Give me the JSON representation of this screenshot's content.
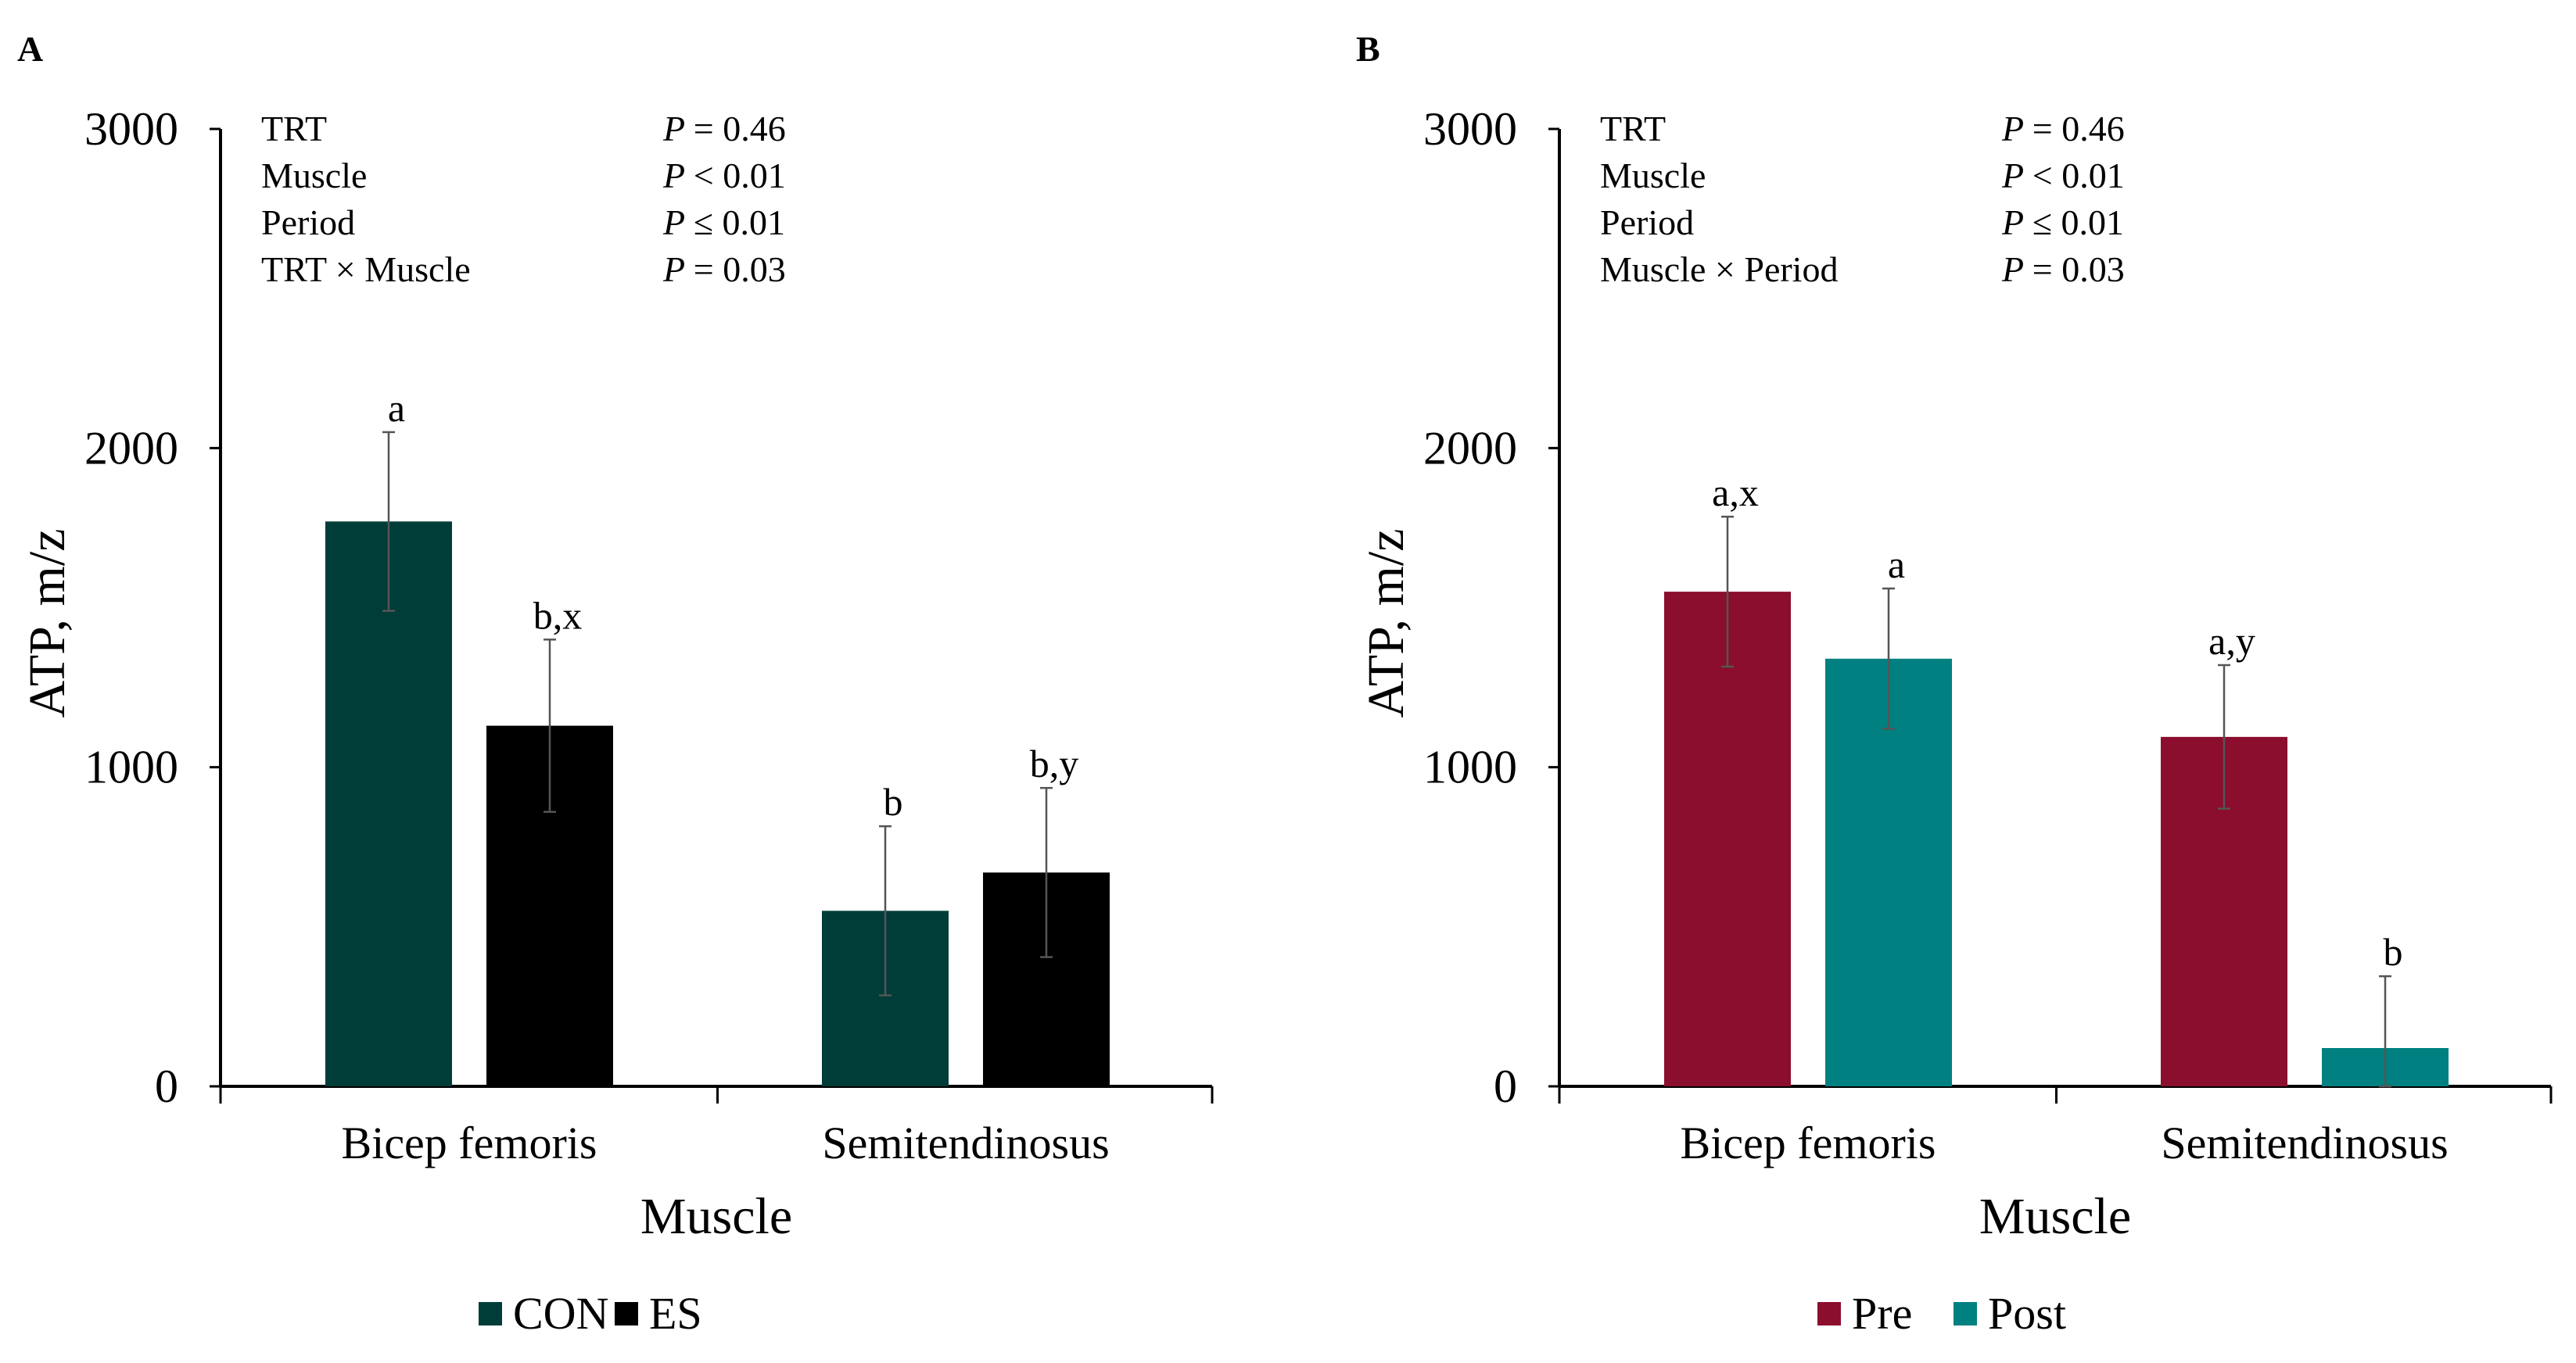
{
  "chart_data": [
    {
      "panel": "A",
      "type": "bar",
      "xlabel": "Muscle",
      "ylabel": "ATP, m/z",
      "ylim": [
        0,
        3000
      ],
      "yticks": [
        "0",
        "1000",
        "2000",
        "3000"
      ],
      "categories": [
        "Bicep femoris",
        "Semitendinosus"
      ],
      "series": [
        {
          "name": "CON",
          "color": "#003D38",
          "values": [
            1770,
            550
          ],
          "errors": [
            280,
            265
          ],
          "letters": [
            "a",
            "b"
          ]
        },
        {
          "name": "ES",
          "color": "#000000",
          "values": [
            1130,
            670
          ],
          "errors": [
            270,
            265
          ],
          "letters": [
            "b,x",
            "b,y"
          ]
        }
      ],
      "stats": [
        {
          "effect": "TRT",
          "p_label": "P",
          "p_value": "= 0.46"
        },
        {
          "effect": "Muscle",
          "p_label": "P",
          "p_value": "< 0.01"
        },
        {
          "effect": "Period",
          "p_label": "P",
          "p_value": "≤ 0.01"
        },
        {
          "effect": "TRT × Muscle",
          "p_label": "P",
          "p_value": "= 0.03"
        }
      ],
      "legend_position": "bottom"
    },
    {
      "panel": "B",
      "type": "bar",
      "xlabel": "Muscle",
      "ylabel": "ATP, m/z",
      "ylim": [
        0,
        3000
      ],
      "yticks": [
        "0",
        "1000",
        "2000",
        "3000"
      ],
      "categories": [
        "Bicep femoris",
        "Semitendinosus"
      ],
      "series": [
        {
          "name": "Pre",
          "color": "#8B0E2E",
          "values": [
            1550,
            1095
          ],
          "errors": [
            235,
            225
          ],
          "letters": [
            "a,x",
            "a,y"
          ]
        },
        {
          "name": "Post",
          "color": "#008080",
          "values": [
            1340,
            120
          ],
          "errors": [
            220,
            225
          ],
          "letters": [
            "a",
            "b"
          ]
        }
      ],
      "stats": [
        {
          "effect": "TRT",
          "p_label": "P",
          "p_value": "= 0.46"
        },
        {
          "effect": "Muscle",
          "p_label": "P",
          "p_value": "< 0.01"
        },
        {
          "effect": "Period",
          "p_label": "P",
          "p_value": "≤ 0.01"
        },
        {
          "effect": "Muscle × Period",
          "p_label": "P",
          "p_value": "= 0.03"
        }
      ],
      "legend_position": "bottom"
    }
  ]
}
